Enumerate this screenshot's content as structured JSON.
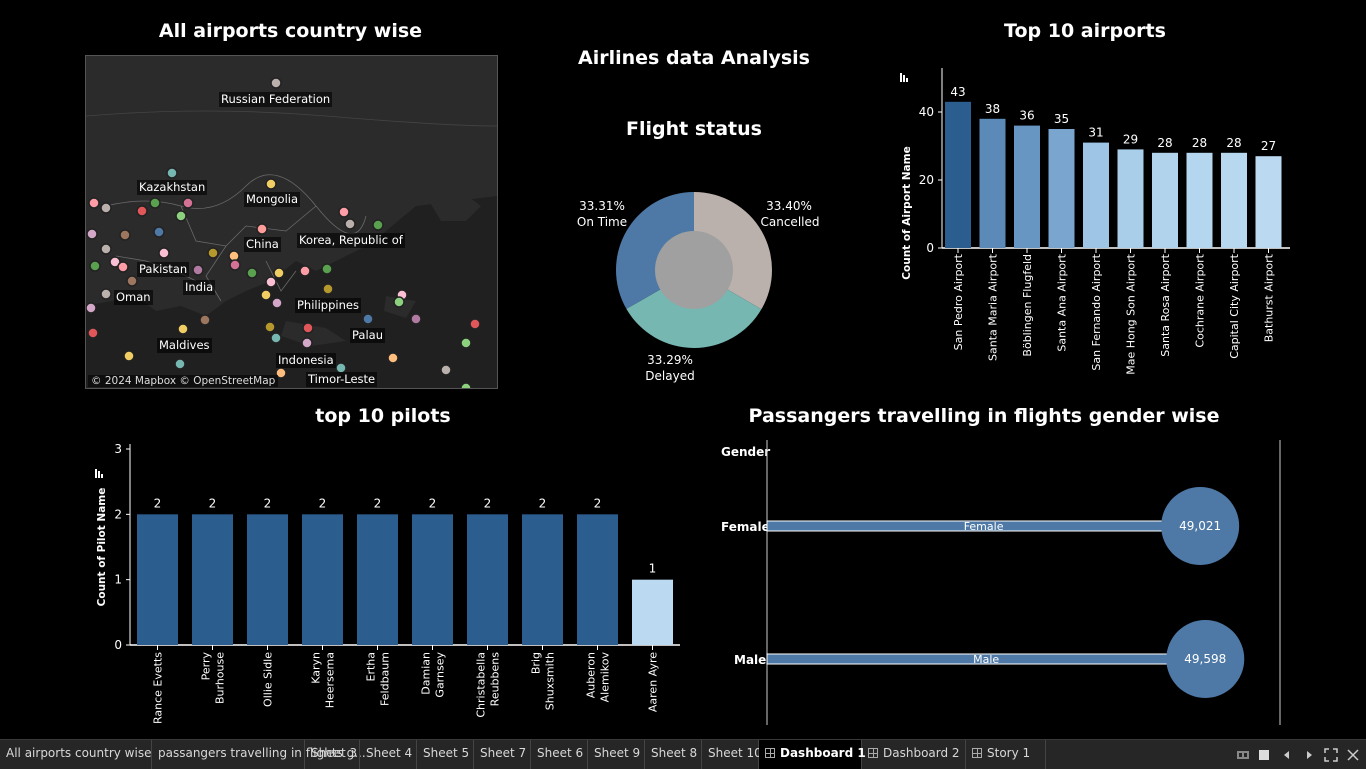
{
  "dashboard_title": "Airlines data Analysis",
  "map": {
    "title": "All airports country wise",
    "credit": "© 2024 Mapbox © OpenStreetMap",
    "labels": [
      "Russian Federation",
      "Kazakhstan",
      "Mongolia",
      "China",
      "Korea, Republic of",
      "Pakistan",
      "India",
      "Oman",
      "Philippines",
      "Palau",
      "Maldives",
      "Indonesia",
      "Timor-Leste"
    ]
  },
  "flight_status": {
    "title": "Flight status",
    "slices": [
      {
        "name": "Cancelled",
        "value": 33.4,
        "label": "33.40%",
        "color": "#bab0ac"
      },
      {
        "name": "Delayed",
        "value": 33.29,
        "label": "33.29%",
        "color": "#76b7b2"
      },
      {
        "name": "On Time",
        "value": 33.31,
        "label": "33.31%",
        "color": "#4e79a7"
      }
    ]
  },
  "chart_data": [
    {
      "type": "bar",
      "title": "Top 10 airports",
      "ylabel": "Count of Airport Name",
      "ylim": [
        0,
        50
      ],
      "yticks": [
        0,
        20,
        40
      ],
      "categories": [
        "San Pedro Airport",
        "Santa Maria Airport",
        "Böblingen Flugfeld",
        "Santa Ana Airport",
        "San Fernando Airport",
        "Mae Hong Son Airport",
        "Santa Rosa Airport",
        "Cochrane Airport",
        "Capital City Airport",
        "Bathurst Airport"
      ],
      "values": [
        43,
        38,
        36,
        35,
        31,
        29,
        28,
        28,
        28,
        27
      ],
      "data_labels": [
        "43",
        "38",
        "36",
        "35",
        "31",
        "29",
        "28",
        "28",
        "28",
        "27"
      ]
    },
    {
      "type": "bar",
      "title": "top 10 pilots",
      "ylabel": "Count of Pilot Name",
      "ylim": [
        0,
        3
      ],
      "yticks": [
        0,
        1,
        2,
        3
      ],
      "categories": [
        [
          "Rance Evetts"
        ],
        [
          "Perry",
          "Burhouse"
        ],
        [
          "Ollie Sidle"
        ],
        [
          "Karyn",
          "Heersema"
        ],
        [
          "Ertha",
          "Feldbaum"
        ],
        [
          "Damian",
          "Garnsey"
        ],
        [
          "Christabella",
          "Reubbens"
        ],
        [
          "Brig",
          "Shuxsmith"
        ],
        [
          "Auberon",
          "Alemikov"
        ],
        [
          "Aaren Ayre"
        ]
      ],
      "values": [
        2,
        2,
        2,
        2,
        2,
        2,
        2,
        2,
        2,
        1
      ],
      "data_labels": [
        "2",
        "2",
        "2",
        "2",
        "2",
        "2",
        "2",
        "2",
        "2",
        "1"
      ]
    },
    {
      "type": "bar",
      "title": "Passangers travelling in flights gender wise",
      "dimension": "Gender",
      "categories": [
        "Female",
        "Male"
      ],
      "values": [
        49021,
        49598
      ],
      "data_labels": [
        "49,021",
        "49,598"
      ]
    }
  ],
  "tabs": [
    {
      "label": "All airports country wise",
      "active": false,
      "icon": ""
    },
    {
      "label": "passangers travelling in flights g...",
      "active": false,
      "icon": ""
    },
    {
      "label": "Sheet 3",
      "active": false,
      "icon": ""
    },
    {
      "label": "Sheet 4",
      "active": false,
      "icon": ""
    },
    {
      "label": "Sheet 5",
      "active": false,
      "icon": ""
    },
    {
      "label": "Sheet 7",
      "active": false,
      "icon": ""
    },
    {
      "label": "Sheet 6",
      "active": false,
      "icon": ""
    },
    {
      "label": "Sheet 9",
      "active": false,
      "icon": ""
    },
    {
      "label": "Sheet 8",
      "active": false,
      "icon": ""
    },
    {
      "label": "Sheet 10",
      "active": false,
      "icon": ""
    },
    {
      "label": "Dashboard 1",
      "active": true,
      "icon": "dashboard-icon"
    },
    {
      "label": "Dashboard 2",
      "active": false,
      "icon": "dashboard-icon"
    },
    {
      "label": "Story 1",
      "active": false,
      "icon": "story-icon"
    }
  ],
  "controls": [
    "filmstrip-icon",
    "tab-view-icon",
    "previous-sheet-icon",
    "next-sheet-icon",
    "fit-icon",
    "fullscreen-icon"
  ]
}
